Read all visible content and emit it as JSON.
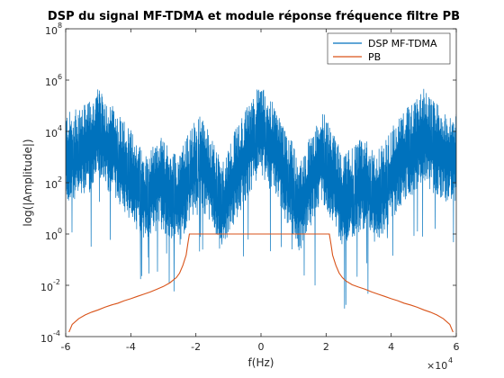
{
  "chart_data": {
    "type": "line",
    "title": "DSP du signal MF-TDMA et module réponse fréquence filtre PB",
    "xlabel": "f(Hz)",
    "ylabel": "log(|Amplitude|)",
    "x_multiplier": {
      "base": "×10",
      "exp": "4"
    },
    "xlim": [
      -60000,
      60000
    ],
    "ylim": [
      0.0001,
      100000000
    ],
    "yscale": "log",
    "xtick_values": [
      -60000,
      -40000,
      -20000,
      0,
      20000,
      40000,
      60000
    ],
    "xtick_labels": [
      "-6",
      "-4",
      "-2",
      "0",
      "2",
      "4",
      "6"
    ],
    "ytick_values": [
      0.0001,
      0.01,
      1,
      100,
      10000,
      1000000,
      100000000
    ],
    "ytick_labels": [
      {
        "base": "10",
        "exp": "-4"
      },
      {
        "base": "10",
        "exp": "-2"
      },
      {
        "base": "10",
        "exp": "0"
      },
      {
        "base": "10",
        "exp": "2"
      },
      {
        "base": "10",
        "exp": "4"
      },
      {
        "base": "10",
        "exp": "6"
      },
      {
        "base": "10",
        "exp": "8"
      }
    ],
    "grid": false,
    "legend_position": "top-right",
    "series": [
      {
        "name": "DSP MF-TDMA",
        "color": "#0072BD",
        "style": "noisy-psd",
        "x": [
          -60000,
          -58000,
          -55000,
          -52000,
          -50000,
          -48000,
          -45000,
          -42000,
          -40000,
          -37000,
          -35000,
          -33000,
          -31000,
          -29000,
          -27000,
          -25000,
          -23000,
          -21000,
          -19000,
          -17000,
          -15000,
          -13000,
          -12000,
          -11000,
          -9000,
          -7000,
          -5000,
          -3000,
          -1000,
          0,
          1000,
          3000,
          5000,
          7000,
          9000,
          11000,
          12000,
          13000,
          15000,
          17000,
          19000,
          21000,
          23000,
          25000,
          27000,
          29000,
          31000,
          33000,
          35000,
          37000,
          40000,
          42000,
          45000,
          48000,
          50000,
          52000,
          55000,
          58000,
          60000
        ],
        "y": [
          1000,
          1000,
          1500,
          3000,
          8000,
          3000,
          1500,
          500,
          200,
          50,
          20,
          60,
          100,
          50,
          30,
          20,
          100,
          300,
          1000,
          300,
          100,
          20,
          10,
          20,
          100,
          300,
          1000,
          3000,
          8000,
          10000,
          8000,
          3000,
          1000,
          300,
          100,
          20,
          10,
          20,
          100,
          300,
          1000,
          300,
          100,
          20,
          30,
          50,
          100,
          60,
          20,
          50,
          200,
          500,
          1500,
          3000,
          8000,
          3000,
          1500,
          1000,
          1000
        ]
      },
      {
        "name": "PB",
        "color": "#D95319",
        "x": [
          -59000,
          -58000,
          -56000,
          -54000,
          -52000,
          -50000,
          -48000,
          -46000,
          -44000,
          -42000,
          -40000,
          -38000,
          -36000,
          -34000,
          -32000,
          -30000,
          -28000,
          -26000,
          -25000,
          -24000,
          -23000,
          -22500,
          -22000,
          -20000,
          -10000,
          0,
          10000,
          20000,
          21000,
          21500,
          22000,
          23000,
          24000,
          25000,
          26000,
          28000,
          30000,
          32000,
          34000,
          36000,
          38000,
          40000,
          42000,
          44000,
          46000,
          48000,
          50000,
          52000,
          54000,
          56000,
          58000,
          59000
        ],
        "y": [
          0.00015,
          0.0003,
          0.0005,
          0.0007,
          0.0009,
          0.0011,
          0.0014,
          0.0017,
          0.002,
          0.0025,
          0.003,
          0.0037,
          0.0045,
          0.0055,
          0.007,
          0.009,
          0.0125,
          0.02,
          0.03,
          0.06,
          0.15,
          0.4,
          1,
          1,
          1,
          1,
          1,
          1,
          1,
          0.4,
          0.15,
          0.06,
          0.03,
          0.02,
          0.015,
          0.0105,
          0.0085,
          0.007,
          0.0055,
          0.0045,
          0.0037,
          0.003,
          0.0025,
          0.002,
          0.0017,
          0.0014,
          0.0011,
          0.0009,
          0.0007,
          0.0005,
          0.0003,
          0.00015
        ]
      }
    ]
  }
}
